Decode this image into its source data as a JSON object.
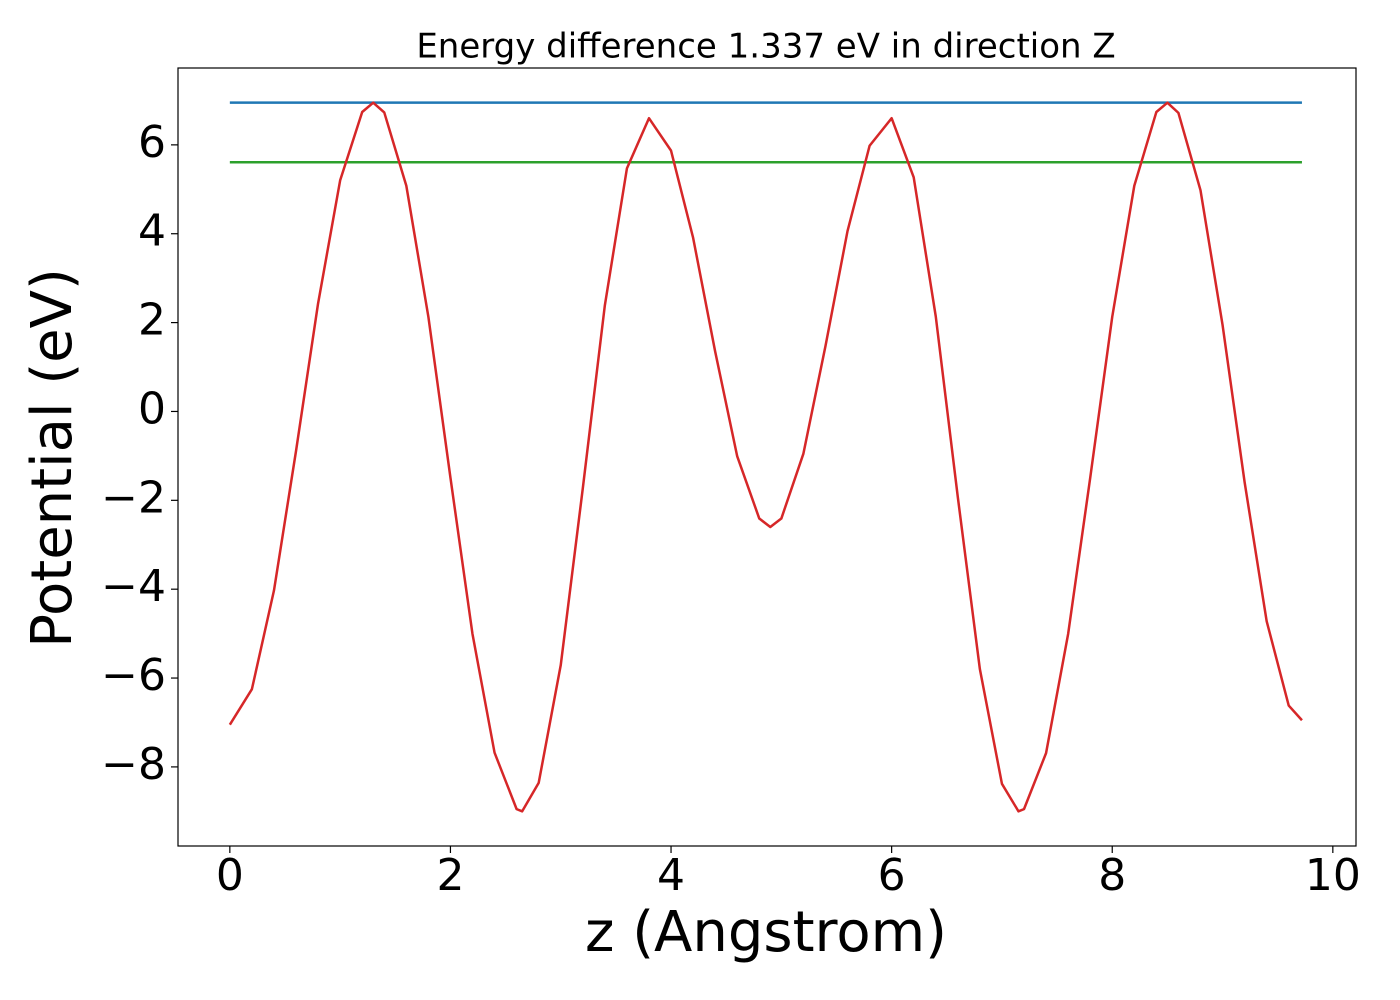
{
  "chart_data": {
    "type": "line",
    "title": "Energy difference 1.337 eV in direction Z",
    "x_label": "z (Angstrom)",
    "y_label": "Potential (eV)",
    "xlim": [
      -0.47,
      10.21
    ],
    "ylim": [
      -9.78,
      7.73
    ],
    "xticks": [
      0,
      2,
      4,
      6,
      8,
      10
    ],
    "yticks": [
      {
        "value": -8,
        "label": "−8"
      },
      {
        "value": -6,
        "label": "−6"
      },
      {
        "value": -4,
        "label": "−4"
      },
      {
        "value": -2,
        "label": "−2"
      },
      0,
      2,
      4,
      6
    ],
    "grid": false,
    "series": [
      {
        "color": "#1f77b4",
        "x": [
          0,
          9.72
        ],
        "values": [
          6.95,
          6.95
        ]
      },
      {
        "color": "#2ca02c",
        "x": [
          0,
          9.72
        ],
        "values": [
          5.61,
          5.61
        ]
      },
      {
        "color": "#d62728",
        "x": [
          0,
          0.2,
          0.4,
          0.6,
          0.8,
          1.0,
          1.2,
          1.3,
          1.4,
          1.6,
          1.8,
          2.0,
          2.2,
          2.4,
          2.6,
          2.65,
          2.8,
          3.0,
          3.2,
          3.4,
          3.6,
          3.8,
          4.0,
          4.2,
          4.4,
          4.6,
          4.8,
          4.9,
          5.0,
          5.2,
          5.4,
          5.6,
          5.8,
          6.0,
          6.2,
          6.4,
          6.6,
          6.8,
          7.0,
          7.15,
          7.2,
          7.4,
          7.6,
          7.8,
          8.0,
          8.2,
          8.4,
          8.5,
          8.6,
          8.8,
          9.0,
          9.2,
          9.4,
          9.6,
          9.72
        ],
        "values": [
          -7.05,
          -6.25,
          -4.03,
          -0.89,
          2.43,
          5.2,
          6.74,
          6.95,
          6.73,
          5.08,
          2.13,
          -1.49,
          -5.01,
          -7.68,
          -8.95,
          -9.0,
          -8.36,
          -5.71,
          -1.73,
          2.39,
          5.47,
          6.6,
          5.87,
          3.91,
          1.35,
          -1.01,
          -2.41,
          -2.6,
          -2.41,
          -0.95,
          1.47,
          4.06,
          5.98,
          6.6,
          5.27,
          2.14,
          -1.93,
          -5.8,
          -8.38,
          -9.0,
          -8.95,
          -7.69,
          -5.01,
          -1.5,
          2.13,
          5.08,
          6.74,
          6.95,
          6.72,
          4.98,
          1.95,
          -1.59,
          -4.72,
          -6.62,
          -6.95
        ]
      }
    ]
  }
}
